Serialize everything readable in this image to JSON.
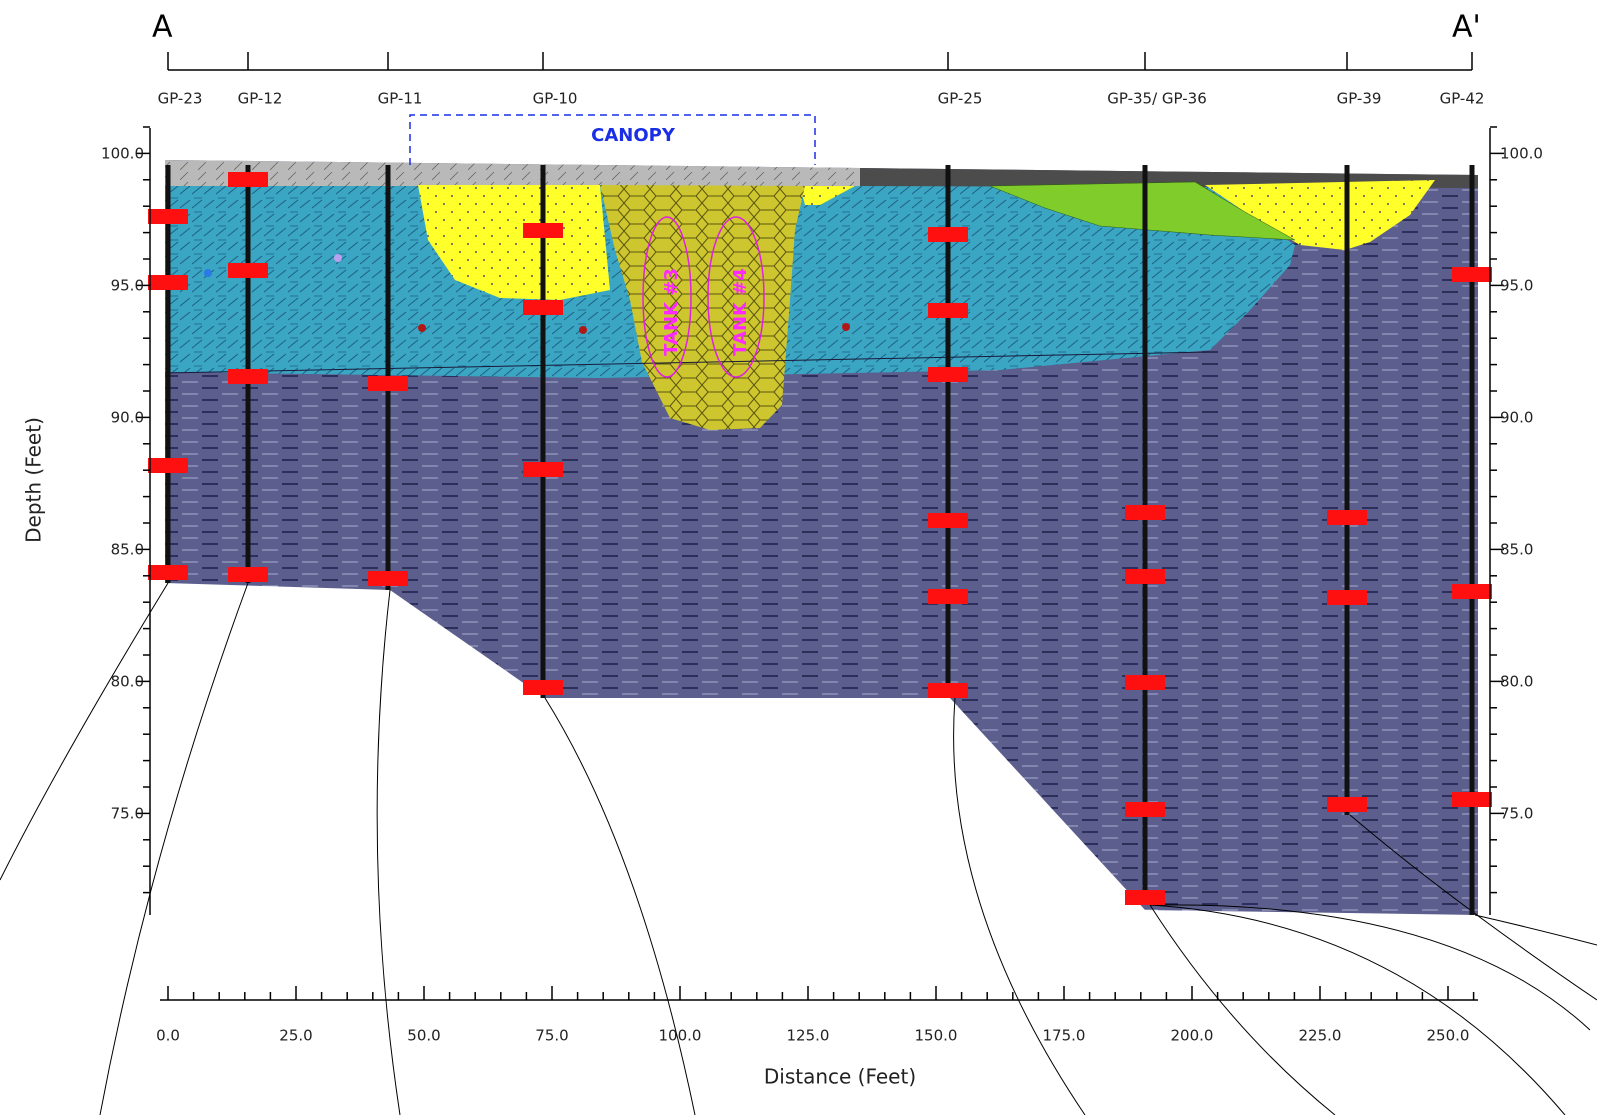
{
  "section": {
    "start": "A",
    "end": "A'"
  },
  "wells": [
    "GP-23",
    "GP-12",
    "GP-11",
    "GP-10",
    "GP-25",
    "GP-35/ GP-36",
    "GP-39",
    "GP-42"
  ],
  "canopy": "CANOPY",
  "tanks": [
    "TANK #3",
    "TANK #4"
  ],
  "y_axis": {
    "title": "Depth (Feet)",
    "ticks": [
      "100.0",
      "95.0",
      "90.0",
      "85.0",
      "80.0",
      "75.0"
    ]
  },
  "x_axis": {
    "title": "Distance (Feet)",
    "ticks": [
      "0.0",
      "25.0",
      "50.0",
      "75.0",
      "100.0",
      "125.0",
      "150.0",
      "175.0",
      "200.0",
      "225.0",
      "250.0"
    ]
  }
}
